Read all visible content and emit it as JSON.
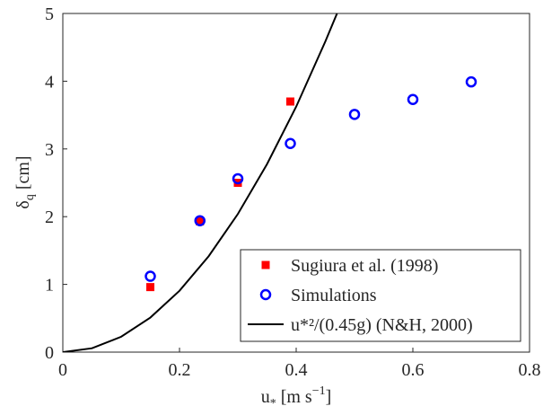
{
  "chart_data": {
    "type": "scatter",
    "xlabel": [
      "u",
      "*",
      " [m s",
      "−1",
      "]"
    ],
    "ylabel": [
      "δ",
      "q",
      " [cm]"
    ],
    "xlim": [
      0,
      0.8
    ],
    "ylim": [
      0,
      5
    ],
    "xticks": [
      0,
      0.2,
      0.4,
      0.6,
      0.8
    ],
    "yticks": [
      0,
      1,
      2,
      3,
      4,
      5
    ],
    "legend": "lower right",
    "series": [
      {
        "name": "Sugiura et al. (1998)",
        "color": "#ff0000",
        "marker": "square",
        "x": [
          0.15,
          0.235,
          0.3,
          0.39
        ],
        "values": [
          0.96,
          1.93,
          2.5,
          3.7
        ]
      },
      {
        "name": "Simulations",
        "color": "#0000ff",
        "marker": "circle",
        "x": [
          0.15,
          0.235,
          0.3,
          0.39,
          0.5,
          0.6,
          0.7
        ],
        "values": [
          1.12,
          1.94,
          2.56,
          3.08,
          3.51,
          3.73,
          3.99
        ]
      },
      {
        "name": "u*²/(0.45g) (N&H, 2000)",
        "color": "#000000",
        "marker": "line",
        "x": [
          0,
          0.05,
          0.1,
          0.15,
          0.2,
          0.25,
          0.3,
          0.35,
          0.4,
          0.45,
          0.47
        ],
        "values": [
          0,
          0.057,
          0.227,
          0.51,
          0.906,
          1.416,
          2.039,
          2.775,
          3.624,
          4.587,
          5.0
        ]
      }
    ]
  }
}
